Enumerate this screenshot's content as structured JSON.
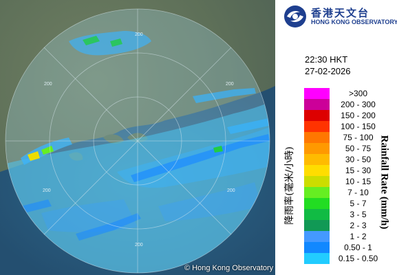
{
  "radar": {
    "range_ring_labels": [
      "200",
      "200",
      "200",
      "200",
      "200",
      "200"
    ],
    "copyright_symbol": "©",
    "copyright_text": "Hong Kong Observatory"
  },
  "header": {
    "logo_cn": "香港天文台",
    "logo_en": "HONG KONG OBSERVATORY"
  },
  "time": {
    "time": "22:30 HKT",
    "date": "27-02-2026"
  },
  "legend": {
    "title_cn": "降雨率(毫米/小時)",
    "title_en": "Rainfall Rate (mm/h)",
    "items": [
      {
        "label": ">300",
        "color": "#ff00ff"
      },
      {
        "label": "200 - 300",
        "color": "#cc0099"
      },
      {
        "label": "150 - 200",
        "color": "#dd0000"
      },
      {
        "label": "100 - 150",
        "color": "#ff3300"
      },
      {
        "label": "75 - 100",
        "color": "#ff7700"
      },
      {
        "label": "50 - 75",
        "color": "#ff9900"
      },
      {
        "label": "30 - 50",
        "color": "#ffbb00"
      },
      {
        "label": "15 - 30",
        "color": "#ffdd00"
      },
      {
        "label": "10 - 15",
        "color": "#ccdd00"
      },
      {
        "label": "7 - 10",
        "color": "#66ee22"
      },
      {
        "label": "5 - 7",
        "color": "#22dd22"
      },
      {
        "label": "3 - 5",
        "color": "#11bb44"
      },
      {
        "label": "2 - 3",
        "color": "#119955"
      },
      {
        "label": "1 - 2",
        "color": "#4499ff"
      },
      {
        "label": "0.50 - 1",
        "color": "#1188ff"
      },
      {
        "label": "0.15 - 0.50",
        "color": "#22ccff"
      }
    ]
  }
}
